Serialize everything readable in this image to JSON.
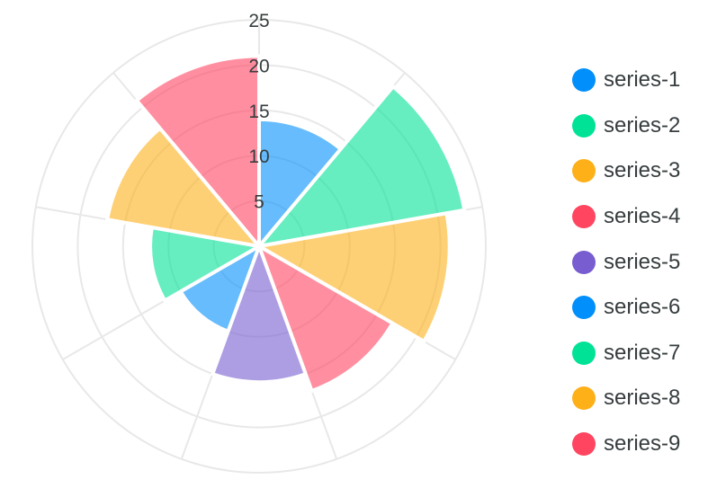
{
  "chart_data": {
    "type": "polarArea",
    "series": [
      {
        "name": "series-1",
        "value": 14,
        "color": "#008FFB"
      },
      {
        "name": "series-2",
        "value": 23,
        "color": "#00E396"
      },
      {
        "name": "series-3",
        "value": 21,
        "color": "#FEB019"
      },
      {
        "name": "series-4",
        "value": 17,
        "color": "#FF4560"
      },
      {
        "name": "series-5",
        "value": 15,
        "color": "#775DD0"
      },
      {
        "name": "series-6",
        "value": 10,
        "color": "#008FFB"
      },
      {
        "name": "series-7",
        "value": 12,
        "color": "#00E396"
      },
      {
        "name": "series-8",
        "value": 17,
        "color": "#FEB019"
      },
      {
        "name": "series-9",
        "value": 21,
        "color": "#FF4560"
      }
    ],
    "radial_axis": {
      "min": 0,
      "max": 25,
      "ticks": [
        5,
        10,
        15,
        20,
        25
      ]
    },
    "fill_opacity": 0.6,
    "legend_position": "right",
    "grid": true
  }
}
